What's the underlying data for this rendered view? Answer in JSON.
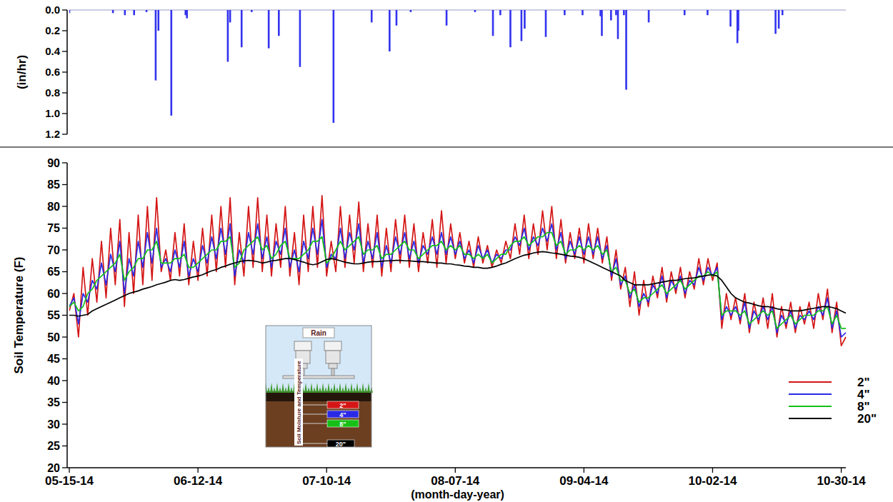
{
  "chart_data": [
    {
      "type": "bar",
      "ylabel": "(in/hr)",
      "x": [
        0,
        9.5,
        12.1,
        14.1,
        16.8,
        18.8,
        19.4,
        22.2,
        25.3,
        25.6,
        34.5,
        35,
        37.5,
        39.7,
        43.4,
        45.6,
        50.2,
        57.5,
        65.8,
        69.7,
        71.2,
        74.3,
        82.1,
        88.3,
        92.2,
        93.8,
        96,
        98.4,
        99.1,
        103.7,
        107.8,
        111.7,
        115.6,
        115.9,
        117.9,
        119,
        119.4,
        120.7,
        121.2,
        126.1,
        133.9,
        138.9,
        143.9,
        145.4,
        145.6,
        153.7,
        154.4,
        155.2
      ],
      "values": [
        0.03,
        0.03,
        0.05,
        0.05,
        0.02,
        0.68,
        0.2,
        1.02,
        0.05,
        0.08,
        0.5,
        0.12,
        0.36,
        0.02,
        0.37,
        0.25,
        0.55,
        1.09,
        0.12,
        0.4,
        0.15,
        0.02,
        0.15,
        0.02,
        0.25,
        0.05,
        0.36,
        0.3,
        0.18,
        0.26,
        0.05,
        0.05,
        0.06,
        0.25,
        0.1,
        0.05,
        0.28,
        0.05,
        0.77,
        0.12,
        0.05,
        0.05,
        0.16,
        0.32,
        0.2,
        0.23,
        0.18,
        0.05
      ],
      "color": "#3333ee",
      "xlim": [
        0,
        169
      ],
      "ylim": [
        0,
        1.2
      ],
      "yticks": [
        {
          "value": 0,
          "label": "0.0"
        },
        {
          "value": 0.2,
          "label": "0.2"
        },
        {
          "value": 0.4,
          "label": "0.4"
        },
        {
          "value": 0.6,
          "label": "0.6"
        },
        {
          "value": 0.8,
          "label": "0.8"
        },
        {
          "value": 1.0,
          "label": "1.0"
        },
        {
          "value": 1.2,
          "label": "1.2"
        }
      ],
      "tick_labels": "y",
      "grid": false
    },
    {
      "type": "line",
      "xlabel": "(month-day-year)",
      "ylabel": "Soil Temperature (F)",
      "x": [
        0,
        1,
        2,
        3,
        4,
        5,
        6,
        7,
        8,
        9,
        10,
        11,
        12,
        13,
        14,
        15,
        16,
        17,
        18,
        19,
        20,
        21,
        22,
        23,
        24,
        25,
        26,
        27,
        28,
        29,
        30,
        31,
        32,
        33,
        34,
        35,
        36,
        37,
        38,
        39,
        40,
        41,
        42,
        43,
        44,
        45,
        46,
        47,
        48,
        49,
        50,
        51,
        52,
        53,
        54,
        55,
        56,
        57,
        58,
        59,
        60,
        61,
        62,
        63,
        64,
        65,
        66,
        67,
        68,
        69,
        70,
        71,
        72,
        73,
        74,
        75,
        76,
        77,
        78,
        79,
        80,
        81,
        82,
        83,
        84,
        85,
        86,
        87,
        88,
        89,
        90,
        91,
        92,
        93,
        94,
        95,
        96,
        97,
        98,
        99,
        100,
        101,
        102,
        103,
        104,
        105,
        106,
        107,
        108,
        109,
        110,
        111,
        112,
        113,
        114,
        115,
        116,
        117,
        118,
        119,
        120,
        121,
        122,
        123,
        124,
        125,
        126,
        127,
        128,
        129,
        130,
        131,
        132,
        133,
        134,
        135,
        136,
        137,
        138,
        139,
        140,
        141,
        142,
        143,
        144,
        145,
        146,
        147,
        148,
        149,
        150,
        151,
        152,
        153,
        154,
        155,
        156,
        157,
        158,
        159,
        160,
        161,
        162,
        163,
        164,
        165,
        166,
        167,
        168,
        169
      ],
      "xlim": [
        0,
        169
      ],
      "xticks": [
        {
          "value": 0,
          "label": "05-15-14"
        },
        {
          "value": 28,
          "label": "06-12-14"
        },
        {
          "value": 56,
          "label": "07-10-14"
        },
        {
          "value": 84,
          "label": "08-07-14"
        },
        {
          "value": 112,
          "label": "09-04-14"
        },
        {
          "value": 140,
          "label": "10-02-14"
        },
        {
          "value": 168,
          "label": "10-30-14"
        }
      ],
      "ylim": [
        20,
        90
      ],
      "yticks": [
        20,
        25,
        30,
        35,
        40,
        45,
        50,
        55,
        60,
        65,
        70,
        75,
        80,
        85,
        90
      ],
      "grid": false,
      "legend": "lower right",
      "annotations": [
        "Rain",
        "Soil Moisture and Temperature"
      ],
      "series": [
        {
          "name": "2\"",
          "color": "#d41515",
          "values": [
            56,
            60,
            50,
            66,
            55,
            68,
            58,
            72,
            59,
            75,
            62,
            77,
            57,
            74,
            60,
            78,
            62,
            80,
            63,
            82,
            65,
            70,
            63,
            74,
            64,
            76,
            62,
            72,
            63,
            75,
            64,
            78,
            65,
            80,
            66,
            82,
            62,
            74,
            64,
            80,
            66,
            82,
            65,
            78,
            64,
            76,
            66,
            80,
            64,
            74,
            62,
            78,
            65,
            80,
            66,
            82.5,
            64,
            72,
            65,
            80,
            66,
            78,
            67,
            81,
            65,
            76,
            66,
            78,
            64,
            75,
            65,
            77,
            67,
            78,
            66,
            76,
            65,
            74,
            67,
            77,
            66,
            79,
            67,
            76,
            68,
            74,
            67,
            72,
            66,
            73,
            67,
            71,
            66,
            70,
            67,
            72,
            68,
            76,
            69,
            78,
            68,
            76,
            69,
            79,
            70,
            80,
            68,
            77,
            67,
            74,
            68,
            75,
            67,
            76,
            68,
            75,
            67,
            73,
            63,
            70,
            61,
            66,
            57,
            65,
            55,
            63,
            57,
            64,
            59,
            66,
            58,
            65,
            60,
            66,
            59,
            65,
            61,
            68,
            62,
            68,
            63,
            67,
            52,
            60,
            54,
            59,
            53,
            60,
            51,
            58,
            53,
            59,
            52,
            60,
            50,
            57,
            52,
            58,
            51,
            57,
            53,
            58,
            52,
            60,
            54,
            61,
            51,
            58,
            48,
            50
          ]
        },
        {
          "name": "4\"",
          "color": "#2a2ae6",
          "values": [
            57,
            59,
            53,
            60,
            58,
            63,
            61,
            67,
            62,
            69,
            65,
            72,
            60,
            68,
            64,
            72,
            66,
            74,
            67,
            75,
            66,
            68,
            65,
            70,
            66,
            72,
            64,
            68,
            65,
            71,
            67,
            73,
            68,
            75,
            69,
            76,
            64,
            70,
            67,
            74,
            69,
            76,
            68,
            73,
            66,
            72,
            69,
            75,
            66,
            70,
            65,
            72,
            68,
            75,
            69,
            77,
            66,
            69,
            68,
            75,
            68,
            74,
            70,
            76,
            67,
            72,
            68,
            74,
            66,
            71,
            67,
            73,
            69,
            74,
            68,
            72,
            67,
            71,
            69,
            73,
            69,
            74,
            69,
            73,
            69,
            72,
            68,
            70,
            67,
            71,
            68,
            70,
            67,
            69,
            68,
            70,
            70,
            73,
            71,
            75,
            70,
            73,
            71,
            75,
            72,
            76,
            70,
            74,
            68,
            72,
            69,
            73,
            69,
            73,
            69,
            73,
            68,
            71,
            64,
            68,
            62,
            64,
            59,
            62,
            57,
            60,
            58,
            62,
            60,
            64,
            59,
            63,
            61,
            64,
            60,
            63,
            62,
            66,
            63,
            66,
            64,
            66,
            54,
            57,
            55,
            57,
            54,
            58,
            52,
            56,
            54,
            57,
            54,
            57,
            51,
            55,
            53,
            56,
            52,
            55,
            54,
            56,
            54,
            57,
            55,
            59,
            52,
            56,
            50,
            51
          ]
        },
        {
          "name": "8\"",
          "color": "#16c016",
          "values": [
            57,
            58,
            56,
            57,
            60,
            61,
            63,
            64,
            65,
            66,
            67,
            69,
            63,
            65,
            66,
            68,
            68,
            70,
            70,
            72,
            67,
            67,
            67,
            68,
            68,
            69,
            66,
            66,
            67,
            68,
            69,
            70,
            70,
            72,
            72,
            73,
            66,
            67,
            70,
            71,
            72,
            73,
            70,
            71,
            68,
            69,
            71,
            72,
            68,
            68,
            68,
            69,
            70,
            72,
            72,
            73,
            67,
            68,
            70,
            72,
            70,
            71,
            72,
            73,
            69,
            70,
            70,
            71,
            68,
            69,
            69,
            70,
            71,
            72,
            70,
            70,
            68,
            69,
            70,
            71,
            71,
            72,
            70,
            71,
            70,
            71,
            69,
            69,
            68,
            69,
            68,
            69,
            67,
            68,
            69,
            69,
            71,
            72,
            72,
            73,
            71,
            72,
            73,
            73,
            74,
            74,
            71,
            72,
            69,
            70,
            70,
            71,
            70,
            71,
            70,
            71,
            69,
            70,
            65,
            66,
            63,
            63,
            60,
            61,
            58,
            59,
            59,
            60,
            61,
            62,
            60,
            61,
            62,
            63,
            61,
            62,
            63,
            64,
            64,
            65,
            64,
            65,
            55,
            56,
            56,
            56,
            55,
            56,
            53,
            54,
            55,
            56,
            55,
            56,
            52,
            53,
            54,
            55,
            53,
            54,
            55,
            55,
            55,
            56,
            56,
            57,
            53,
            55,
            52,
            52
          ]
        },
        {
          "name": "20\"",
          "color": "#000000",
          "values": [
            55,
            55,
            54.8,
            55,
            55.2,
            56,
            56.5,
            57,
            57.5,
            58,
            58.5,
            59,
            59.5,
            60,
            60.3,
            60.6,
            61,
            61.3,
            61.6,
            62,
            62.3,
            62.6,
            63,
            63.2,
            63,
            63.2,
            63.5,
            63.8,
            64,
            64.3,
            64.8,
            65.2,
            65.5,
            66,
            66.3,
            66.7,
            67,
            67.3,
            67.5,
            67.6,
            67.5,
            67.3,
            67,
            67.2,
            67.5,
            67.6,
            67.8,
            68,
            68,
            67.8,
            67.5,
            67.2,
            66.8,
            66.6,
            66.8,
            67.3,
            67.8,
            68,
            67.8,
            67.5,
            67.2,
            67,
            66.8,
            66.8,
            67,
            67.2,
            67.3,
            67.3,
            67.4,
            67.5,
            67.5,
            67.6,
            67.6,
            67.5,
            67.5,
            67.4,
            67.3,
            67.3,
            67.2,
            67.1,
            67,
            67,
            66.8,
            66.8,
            66.6,
            66.5,
            66.3,
            66.2,
            66,
            66,
            65.8,
            65.8,
            66,
            66.3,
            66.7,
            67,
            67.5,
            68,
            68.4,
            68.8,
            69,
            69.3,
            69.5,
            69.6,
            69.5,
            69.3,
            69.2,
            69,
            68.8,
            68.6,
            68.5,
            68.3,
            68,
            67.5,
            67,
            66.5,
            66,
            65.5,
            65,
            64.5,
            64,
            63,
            62.5,
            62,
            62,
            62,
            62,
            62.2,
            62.4,
            62.6,
            62.8,
            63,
            63,
            63.2,
            63.4,
            63.5,
            63.6,
            63.8,
            64,
            64.2,
            64.3,
            64,
            63,
            61.5,
            60,
            59,
            58.5,
            58,
            57.8,
            57.5,
            57.2,
            57,
            57,
            56.8,
            56.5,
            56.3,
            56.2,
            56,
            56,
            56,
            56.2,
            56.4,
            56.6,
            56.8,
            57,
            57,
            56.8,
            56.5,
            56,
            55.5
          ]
        }
      ]
    }
  ]
}
